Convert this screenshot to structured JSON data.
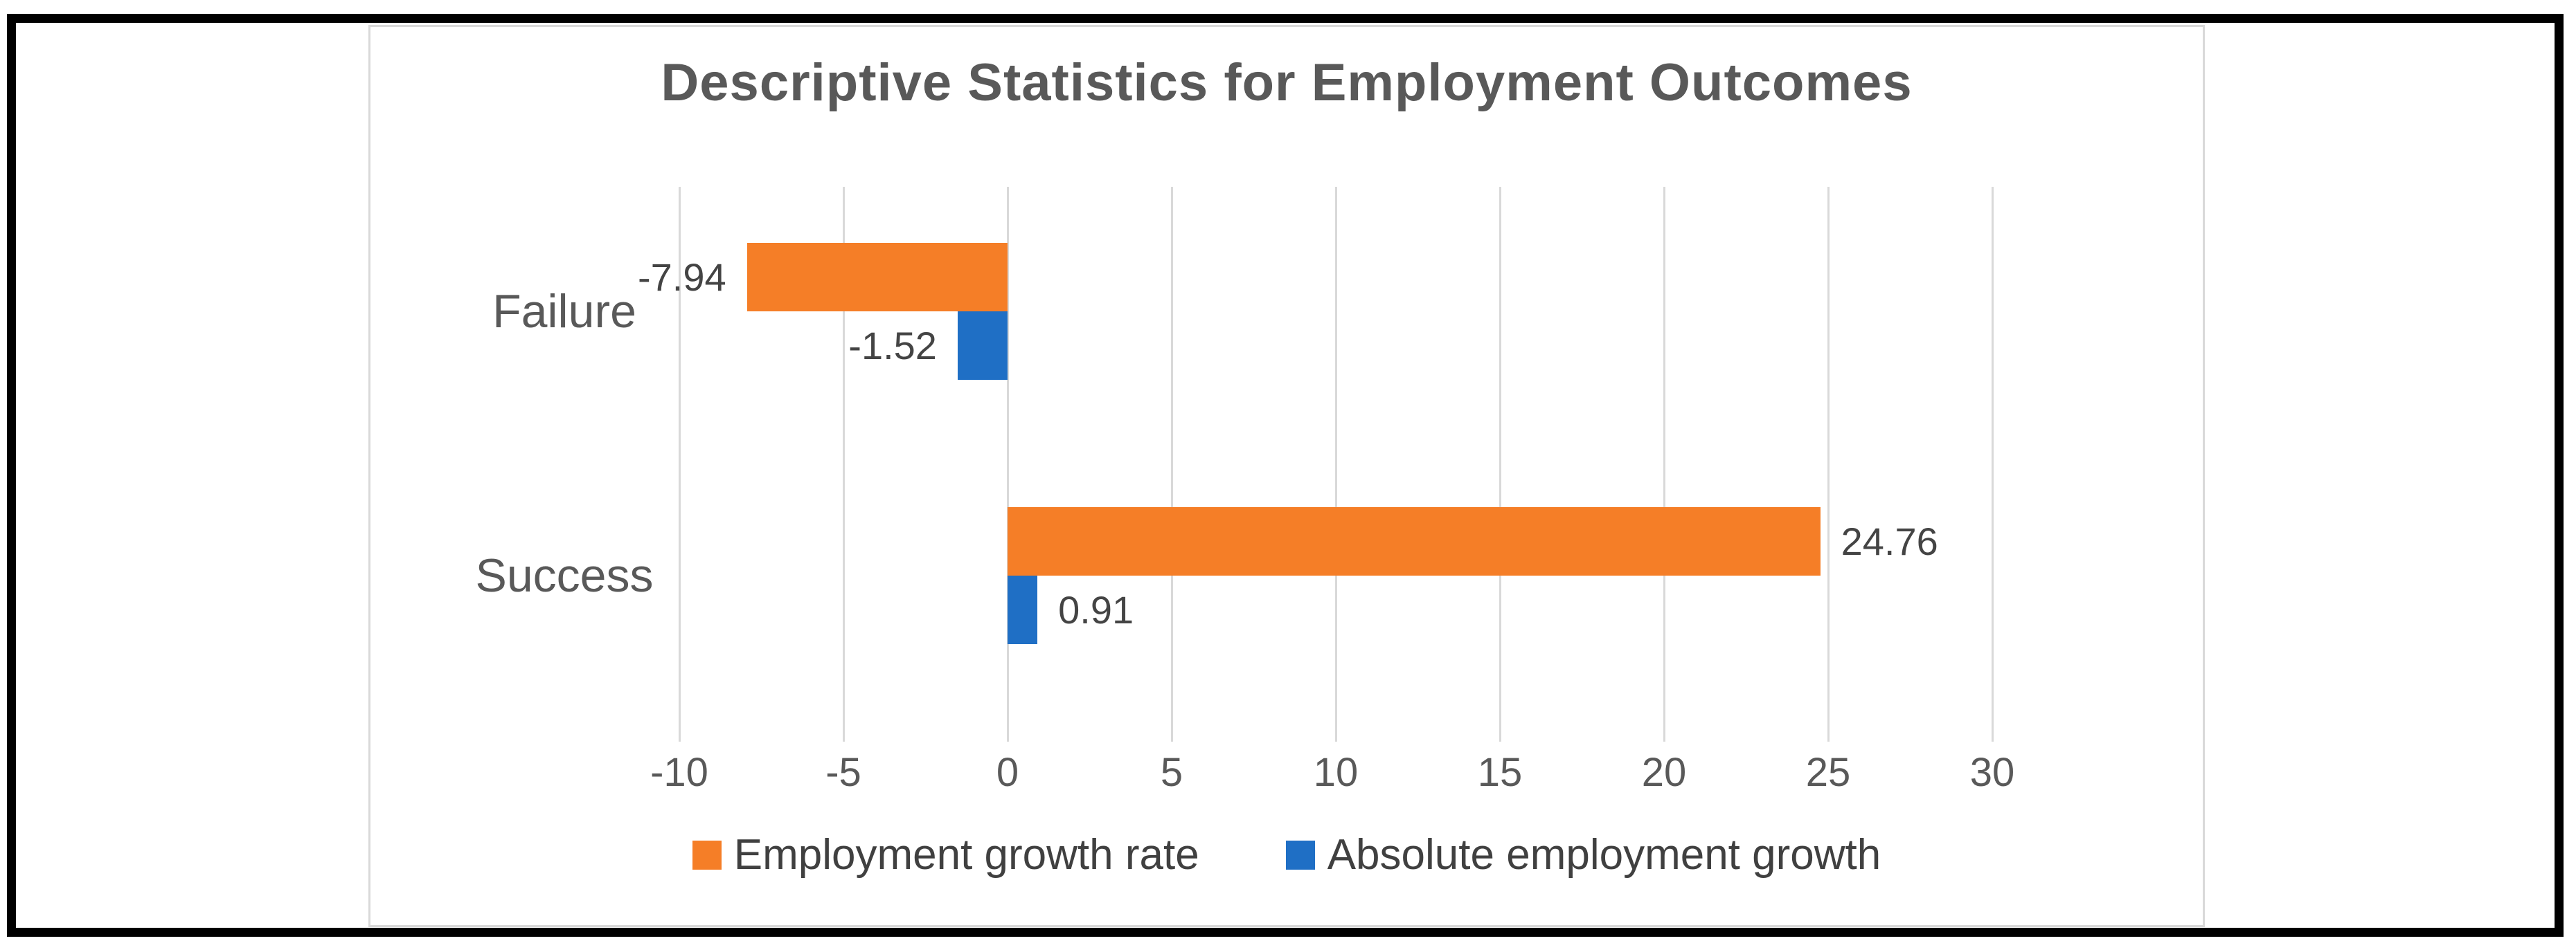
{
  "chart_data": {
    "type": "bar",
    "orientation": "horizontal",
    "title": "Descriptive Statistics for Employment Outcomes",
    "categories": [
      "Failure",
      "Success"
    ],
    "series": [
      {
        "name": "Employment growth rate",
        "color": "#F57E27",
        "values": [
          -7.94,
          24.76
        ],
        "labels": [
          "-7.94",
          "24.76"
        ]
      },
      {
        "name": "Absolute employment growth",
        "color": "#1F6FC5",
        "values": [
          -1.52,
          0.91
        ],
        "labels": [
          "-1.52",
          "0.91"
        ]
      }
    ],
    "x_ticks": [
      -10,
      -5,
      0,
      5,
      10,
      15,
      20,
      25,
      30
    ],
    "x_tick_labels": [
      "-10",
      "-5",
      "0",
      "5",
      "10",
      "15",
      "20",
      "25",
      "30"
    ],
    "xlim": [
      -10,
      30
    ],
    "grid": true,
    "legend_position": "bottom"
  },
  "colors": {
    "series_orange": "#F57E27",
    "series_blue": "#1F6FC5",
    "gridline": "#d9d9d9",
    "chart_border": "#d9d9d9",
    "outer_frame": "#000000",
    "title_text": "#595959",
    "axis_text": "#595959",
    "data_label_text": "#444444",
    "legend_text": "#404040"
  }
}
